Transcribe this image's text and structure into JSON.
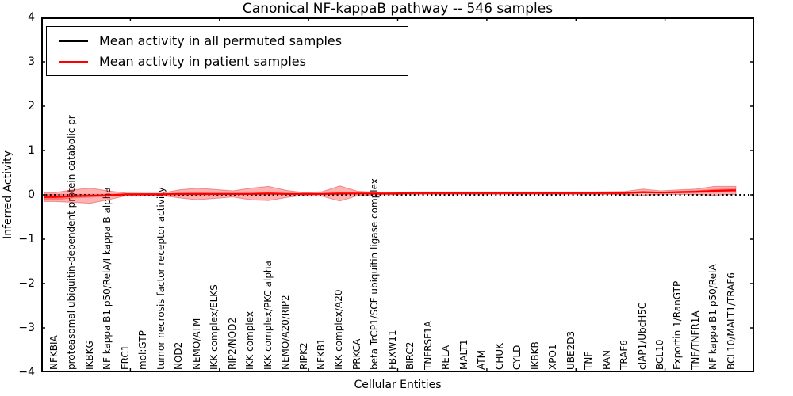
{
  "figure": {
    "title": "Canonical NF-kappaB pathway -- 546 samples",
    "xlabel": "Cellular Entities",
    "ylabel": "Inferred Activity"
  },
  "legend": {
    "items": [
      {
        "label": "Mean activity in all permuted samples",
        "color": "#000000"
      },
      {
        "label": "Mean activity in patient samples",
        "color": "#ff0000"
      }
    ]
  },
  "chart_data": {
    "type": "line",
    "title": "Canonical NF-kappaB pathway -- 546 samples",
    "xlabel": "Cellular Entities",
    "ylabel": "Inferred Activity",
    "ylim": [
      -4,
      4
    ],
    "yticks": [
      4,
      3,
      2,
      1,
      0,
      -1,
      -2,
      -3,
      -4
    ],
    "grid": false,
    "legend_position": "upper left",
    "categories": [
      "NFKBIA",
      "proteasomal ubiquitin-dependent protein catabolic pr",
      "IKBKG",
      "NF kappa B1 p50/RelA/I kappa B alpha",
      "ERC1",
      "mol:GTP",
      "tumor necrosis factor receptor activity",
      "NOD2",
      "NEMO/ATM",
      "IKK complex/ELKS",
      "RIP2/NOD2",
      "IKK complex",
      "IKK complex/PKC alpha",
      "NEMO/A20/RIP2",
      "RIPK2",
      "NFKB1",
      "IKK complex/A20",
      "PRKCA",
      "beta TrCP1/SCF ubiquitin ligase complex",
      "FBXW11",
      "BIRC2",
      "TNFRSF1A",
      "RELA",
      "MALT1",
      "ATM",
      "CHUK",
      "CYLD",
      "IKBKB",
      "XPO1",
      "UBE2D3",
      "TNF",
      "RAN",
      "TRAF6",
      "cIAP1/UbcH5C",
      "BCL10",
      "Exportin 1/RanGTP",
      "TNF/TNFR1A",
      "NF kappa B1 p50/RelA",
      "BCL10/MALT1/TRAF6"
    ],
    "series": [
      {
        "name": "Mean activity in all permuted samples",
        "color": "#000000",
        "style": "dotted",
        "values": [
          0,
          0,
          0,
          0,
          0,
          0,
          0,
          0,
          0,
          0,
          0,
          0,
          0,
          0,
          0,
          0,
          0,
          0,
          0,
          0,
          0,
          0,
          0,
          0,
          0,
          0,
          0,
          0,
          0,
          0,
          0,
          0,
          0,
          0,
          0,
          0,
          0,
          0,
          0
        ]
      },
      {
        "name": "Mean activity in patient samples",
        "color": "#ff0000",
        "style": "solid",
        "values": [
          -0.05,
          -0.03,
          -0.02,
          -0.01,
          0.01,
          0.01,
          0.01,
          0.02,
          0.02,
          0.02,
          0.02,
          0.02,
          0.03,
          0.02,
          0.02,
          0.02,
          0.03,
          0.03,
          0.03,
          0.03,
          0.04,
          0.04,
          0.04,
          0.04,
          0.04,
          0.04,
          0.04,
          0.04,
          0.04,
          0.04,
          0.04,
          0.04,
          0.04,
          0.06,
          0.05,
          0.06,
          0.07,
          0.09,
          0.1
        ]
      }
    ],
    "band": {
      "name": "patient sample activity spread",
      "fill_color": "#ff0000",
      "fill_alpha": 0.3,
      "core_alpha": 0.35,
      "half_width_outer": [
        0.1,
        0.14,
        0.17,
        0.1,
        0.03,
        0.025,
        0.025,
        0.09,
        0.13,
        0.1,
        0.07,
        0.13,
        0.16,
        0.08,
        0.03,
        0.05,
        0.17,
        0.05,
        0.03,
        0.025,
        0.025,
        0.025,
        0.025,
        0.025,
        0.025,
        0.025,
        0.025,
        0.025,
        0.025,
        0.025,
        0.025,
        0.03,
        0.035,
        0.07,
        0.04,
        0.05,
        0.06,
        0.1,
        0.09
      ],
      "half_width_inner": [
        0.07,
        0.05,
        0.04,
        0.03,
        0.02,
        0.02,
        0.02,
        0.025,
        0.03,
        0.025,
        0.02,
        0.025,
        0.03,
        0.02,
        0.02,
        0.02,
        0.03,
        0.02,
        0.02,
        0.02,
        0.02,
        0.02,
        0.02,
        0.02,
        0.02,
        0.02,
        0.02,
        0.02,
        0.02,
        0.02,
        0.02,
        0.02,
        0.02,
        0.025,
        0.02,
        0.025,
        0.03,
        0.04,
        0.04
      ]
    }
  }
}
